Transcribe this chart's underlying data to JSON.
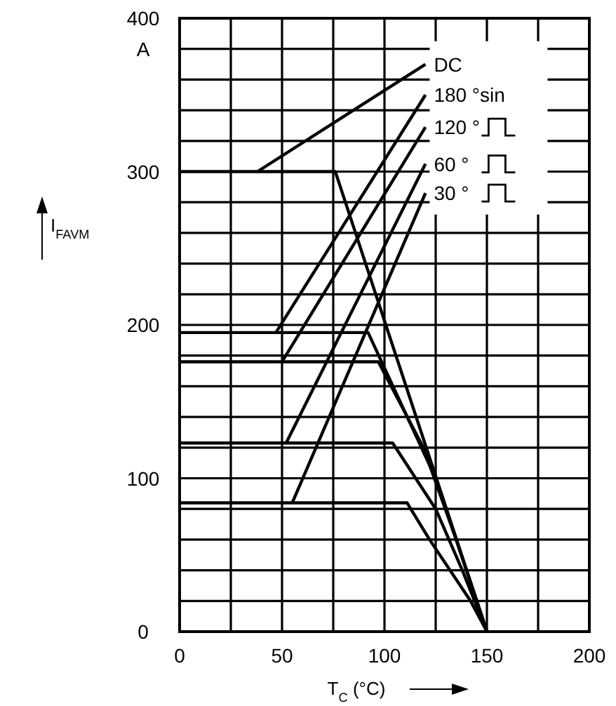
{
  "chart_data": {
    "type": "line",
    "xlabel": "T$_{C}$ (°C)",
    "ylabel": "I$_{FAVM}$",
    "xlim": [
      0,
      200
    ],
    "ylim": [
      0,
      400
    ],
    "xticks": [
      0,
      {
        "value": 25,
        "label": null
      },
      50,
      {
        "value": 75,
        "label": null
      },
      100,
      {
        "value": 125,
        "label": null
      },
      150,
      {
        "value": 175,
        "label": null
      },
      200
    ],
    "yticks": [
      0,
      {
        "value": 20,
        "label": null
      },
      {
        "value": 40,
        "label": null
      },
      {
        "value": 60,
        "label": null
      },
      {
        "value": 80,
        "label": null
      },
      100,
      {
        "value": 120,
        "label": null
      },
      {
        "value": 140,
        "label": null
      },
      {
        "value": 160,
        "label": null
      },
      {
        "value": 180,
        "label": null
      },
      200,
      {
        "value": 220,
        "label": null
      },
      {
        "value": 240,
        "label": null
      },
      {
        "value": 260,
        "label": null
      },
      {
        "value": 280,
        "label": null
      },
      300,
      {
        "value": 320,
        "label": null
      },
      {
        "value": 340,
        "label": null
      },
      {
        "value": 360,
        "label": null
      },
      {
        "value": 380,
        "label": "A"
      },
      400
    ],
    "grid": true,
    "marker": "none",
    "line_style": "solid",
    "legend": "top right",
    "series": [
      {
        "color": "#000000",
        "x": [
          0,
          76,
          150
        ],
        "values": [
          300,
          300,
          0
        ]
      },
      {
        "color": "#000000",
        "x": [
          0,
          92,
          125,
          140,
          150
        ],
        "values": [
          195,
          195,
          100,
          40,
          0
        ]
      },
      {
        "color": "#000000",
        "x": [
          0,
          97,
          119,
          135,
          150
        ],
        "values": [
          176,
          176,
          120,
          60,
          0
        ]
      },
      {
        "color": "#000000",
        "x": [
          0,
          104,
          125,
          138,
          150
        ],
        "values": [
          123,
          123,
          80,
          40,
          0
        ]
      },
      {
        "color": "#000000",
        "x": [
          0,
          111,
          122,
          142,
          150
        ],
        "values": [
          84,
          84,
          60,
          20,
          0
        ]
      },
      {
        "name": "DC",
        "color": "#000000",
        "x": [
          38,
          120
        ],
        "values": [
          300,
          370
        ]
      },
      {
        "name": "180 °sin",
        "color": "#000000",
        "x": [
          47,
          120
        ],
        "values": [
          195,
          350
        ]
      },
      {
        "name": "120 °",
        "color": "#000000",
        "x": [
          50,
          120
        ],
        "values": [
          176,
          329
        ]
      },
      {
        "name": "60 °",
        "color": "#000000",
        "x": [
          52,
          120
        ],
        "values": [
          123,
          305
        ]
      },
      {
        "name": "30 °",
        "color": "#000000",
        "x": [
          55,
          120
        ],
        "values": [
          84,
          286
        ]
      }
    ]
  }
}
